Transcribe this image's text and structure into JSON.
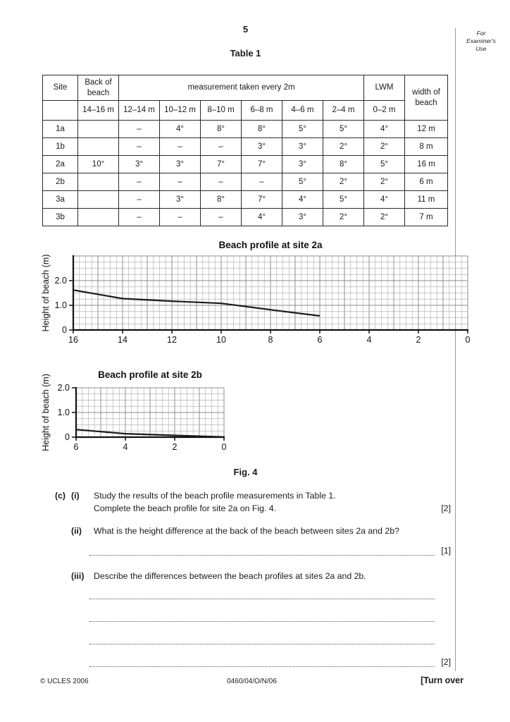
{
  "page": {
    "number": "5",
    "examiner": {
      "l1": "For",
      "l2": "Examiner's",
      "l3": "Use"
    },
    "footer": {
      "copyright": "© UCLES 2006",
      "code": "0460/04/O/N/06",
      "turn": "[Turn over"
    }
  },
  "table": {
    "title": "Table 1",
    "header": {
      "site": "Site",
      "back": "Back of beach",
      "measurement": "measurement taken every 2m",
      "lwm": "LWM",
      "width": "width of beach",
      "ranges": [
        "14–16 m",
        "12–14 m",
        "10–12 m",
        "8–10 m",
        "6–8 m",
        "4–6 m",
        "2–4 m",
        "0–2 m"
      ]
    },
    "rows": [
      {
        "site": "1a",
        "cells": [
          "",
          "–",
          "4°",
          "8°",
          "8°",
          "5°",
          "5°",
          "4°"
        ],
        "width": "12 m"
      },
      {
        "site": "1b",
        "cells": [
          "",
          "–",
          "–",
          "–",
          "3°",
          "3°",
          "2°",
          "2°"
        ],
        "width": "8 m"
      },
      {
        "site": "2a",
        "cells": [
          "10°",
          "3°",
          "3°",
          "7°",
          "7°",
          "3°",
          "8°",
          "5°"
        ],
        "width": "16 m"
      },
      {
        "site": "2b",
        "cells": [
          "",
          "–",
          "–",
          "–",
          "–",
          "5°",
          "2°",
          "2°"
        ],
        "width": "6 m"
      },
      {
        "site": "3a",
        "cells": [
          "",
          "–",
          "3°",
          "8°",
          "7°",
          "4°",
          "5°",
          "4°"
        ],
        "width": "11 m"
      },
      {
        "site": "3b",
        "cells": [
          "",
          "–",
          "–",
          "–",
          "4°",
          "3°",
          "2°",
          "2°"
        ],
        "width": "7 m"
      }
    ]
  },
  "figure": {
    "caption": "Fig. 4"
  },
  "questions": {
    "c_label": "(c)",
    "i_label": "(i)",
    "i_line1": "Study the results of the beach profile measurements in Table 1.",
    "i_line2": "Complete the beach profile for site 2a on Fig. 4.",
    "i_marks": "[2]",
    "ii_label": "(ii)",
    "ii_text": "What is the height difference at the back of the beach between sites 2a and 2b?",
    "ii_marks": "[1]",
    "iii_label": "(iii)",
    "iii_text": "Describe the differences between the beach profiles at sites 2a and 2b.",
    "iii_marks": "[2]"
  },
  "colors": {
    "grid_minor": "#b5b5b5",
    "grid_major": "#8c8c8c",
    "axis": "#111111",
    "profile_line": "#1a1a1a",
    "examiner_rule": "#9a9a9a"
  },
  "chart_data": [
    {
      "type": "line",
      "title": "Beach profile at site 2a",
      "xlabel": "",
      "ylabel": "Height of beach (m)",
      "x": [
        16,
        14,
        12,
        10,
        8,
        6
      ],
      "y": [
        1.62,
        1.27,
        1.17,
        1.08,
        0.82,
        0.57
      ],
      "xticks": [
        16,
        14,
        12,
        10,
        8,
        6,
        4,
        2,
        0
      ],
      "ytick_labels": [
        "0",
        "1.0",
        "2.0"
      ],
      "xlim": [
        16,
        0
      ],
      "ylim": [
        0,
        3
      ],
      "grid": true,
      "grid_step_m": 0.25,
      "note": "profile printed from 16 m to 6 m only; section 6 m to 0 m left blank for candidate to complete"
    },
    {
      "type": "line",
      "title": "Beach profile at site 2b",
      "xlabel": "",
      "ylabel": "Height of beach (m)",
      "x": [
        6,
        4,
        2,
        0
      ],
      "y": [
        0.31,
        0.14,
        0.07,
        0.01
      ],
      "xticks": [
        6,
        4,
        2,
        0
      ],
      "ytick_labels": [
        "0",
        "1.0",
        "2.0"
      ],
      "xlim": [
        6,
        0
      ],
      "ylim": [
        0,
        2
      ],
      "grid": true,
      "grid_step_m": 0.25
    }
  ]
}
